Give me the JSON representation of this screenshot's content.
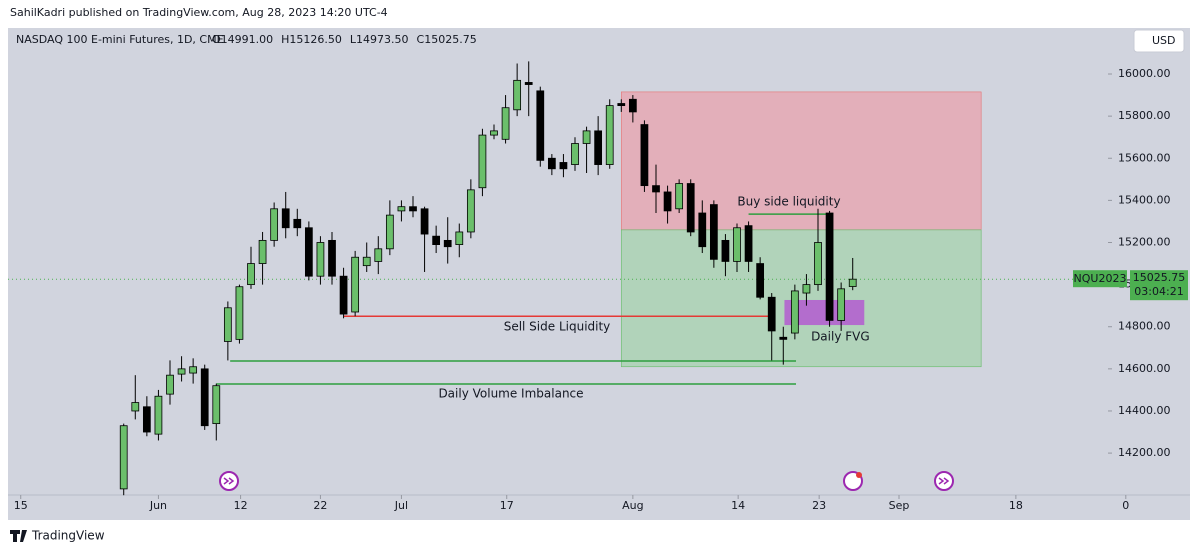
{
  "header": {
    "publisher": "SahilKadri published on TradingView.com, Aug 28, 2023 14:20 UTC-4",
    "brand": "TradingView"
  },
  "chart_data": {
    "type": "candlestick",
    "title": "NASDAQ 100 E-mini Futures, 1D, CME",
    "ohlc_legend": [
      "O14991.00",
      "H15126.50",
      "L14973.50",
      "C15025.75"
    ],
    "currency": "USD",
    "x": [
      0,
      1,
      2,
      3,
      4,
      5,
      6,
      7,
      8,
      9,
      10,
      11,
      12,
      13,
      14,
      15,
      16,
      17,
      18,
      19,
      20,
      21,
      22,
      23,
      24,
      25,
      26,
      27,
      28,
      29,
      30,
      31,
      32,
      33,
      34,
      35,
      36,
      37,
      38,
      39,
      40,
      41,
      42,
      43,
      44,
      45,
      46,
      47,
      48,
      49,
      50,
      51,
      52,
      53,
      54,
      55,
      56,
      57,
      58,
      59,
      60,
      61,
      62,
      63
    ],
    "open": [
      14030,
      14400,
      14420,
      14290,
      14480,
      14575,
      14580,
      14600,
      14340,
      14730,
      14740,
      15000,
      15100,
      15210,
      15360,
      15310,
      15270,
      15040,
      15210,
      15040,
      14870,
      15090,
      15110,
      15170,
      15350,
      15370,
      15360,
      15230,
      15210,
      15190,
      15250,
      15460,
      15710,
      15690,
      15830,
      15960,
      15920,
      15600,
      15580,
      15570,
      15670,
      15730,
      15570,
      15860,
      15880,
      15760,
      15470,
      15440,
      15360,
      15480,
      15340,
      15380,
      15210,
      15110,
      15280,
      15100,
      14940,
      14750,
      14770,
      14960,
      15000,
      15340,
      14830,
      14991
    ],
    "high": [
      14340,
      14570,
      14470,
      14500,
      14640,
      14660,
      14650,
      14620,
      14530,
      14920,
      15000,
      15180,
      15250,
      15390,
      15440,
      15360,
      15300,
      15230,
      15250,
      15080,
      15160,
      15200,
      15230,
      15400,
      15400,
      15420,
      15370,
      15280,
      15320,
      15290,
      15500,
      15740,
      15760,
      15900,
      16050,
      16060,
      15940,
      15620,
      15620,
      15700,
      15750,
      15800,
      15880,
      15880,
      15900,
      15780,
      15570,
      15470,
      15500,
      15500,
      15400,
      15400,
      15240,
      15290,
      15300,
      15130,
      14960,
      14800,
      15000,
      15050,
      15360,
      15350,
      15010,
      15126.5
    ],
    "low": [
      14000,
      14360,
      14280,
      14260,
      14430,
      14540,
      14530,
      14310,
      14260,
      14640,
      14720,
      14980,
      15000,
      15180,
      15220,
      15230,
      15020,
      15000,
      15000,
      14840,
      14850,
      15060,
      15050,
      15140,
      15300,
      15320,
      15060,
      15150,
      15100,
      15130,
      15220,
      15420,
      15690,
      15670,
      15800,
      15800,
      15560,
      15520,
      15510,
      15540,
      15530,
      15520,
      15550,
      15820,
      15770,
      15440,
      15340,
      15290,
      15340,
      15230,
      15150,
      15080,
      15040,
      15060,
      15060,
      14930,
      14640,
      14620,
      14740,
      14900,
      14970,
      14800,
      14780,
      14973.5
    ],
    "close": [
      14330,
      14440,
      14300,
      14470,
      14570,
      14600,
      14610,
      14330,
      14520,
      14890,
      14990,
      15100,
      15210,
      15360,
      15270,
      15270,
      15040,
      15200,
      15040,
      14860,
      15130,
      15130,
      15170,
      15330,
      15370,
      15350,
      15240,
      15190,
      15180,
      15250,
      15450,
      15710,
      15730,
      15840,
      15970,
      15950,
      15590,
      15550,
      15550,
      15670,
      15730,
      15570,
      15850,
      15850,
      15820,
      15470,
      15440,
      15350,
      15480,
      15250,
      15180,
      15120,
      15110,
      15270,
      15110,
      14940,
      14780,
      14740,
      14970,
      15000,
      15200,
      14830,
      14980,
      15025.75
    ],
    "up_color": "#6bbf6b",
    "down_color": "#000000",
    "xlim": [
      -10,
      88
    ],
    "xticks": [
      {
        "value": -8.9,
        "label": "15"
      },
      {
        "value": 3.0,
        "label": "Jun"
      },
      {
        "value": 10.1,
        "label": "12"
      },
      {
        "value": 17.0,
        "label": "22"
      },
      {
        "value": 24.0,
        "label": "Jul"
      },
      {
        "value": 33.1,
        "label": "17"
      },
      {
        "value": 44.0,
        "label": "Aug"
      },
      {
        "value": 53.1,
        "label": "14"
      },
      {
        "value": 60.1,
        "label": "23"
      },
      {
        "value": 67.0,
        "label": "Sep"
      },
      {
        "value": 77.1,
        "label": "18"
      },
      {
        "value": 86.6,
        "label": "0"
      }
    ],
    "ylim": [
      14001,
      16209
    ],
    "yticks": [
      {
        "value": 14200,
        "label": "14200.00"
      },
      {
        "value": 14400,
        "label": "14400.00"
      },
      {
        "value": 14600,
        "label": "14600.00"
      },
      {
        "value": 14800,
        "label": "14800.00"
      },
      {
        "value": 15000,
        "label": "15000.00"
      },
      {
        "value": 15200,
        "label": "15200.00"
      },
      {
        "value": 15400,
        "label": "15400.00"
      },
      {
        "value": 15600,
        "label": "15600.00"
      },
      {
        "value": 15800,
        "label": "15800.00"
      },
      {
        "value": 16000,
        "label": "16000.00"
      }
    ],
    "last_price": {
      "value": 15025.75,
      "symbol": "NQU2023",
      "label": "15025.75",
      "countdown": "03:04:21",
      "color": "#4caf50"
    },
    "zones": [
      {
        "x": [
          43.0,
          74.1
        ],
        "y": [
          15260,
          15915
        ],
        "color": "#e8a3ad"
      },
      {
        "x": [
          43.0,
          74.1
        ],
        "y": [
          14610,
          15260
        ],
        "color": "#a6d3ad"
      },
      {
        "x": [
          57.1,
          64.0
        ],
        "y": [
          14808,
          14927
        ],
        "color": "#b45ad0"
      }
    ],
    "levels": [
      {
        "label": "Buy side liquidity",
        "y": 15335,
        "x": [
          54.0,
          61.1
        ],
        "color": "#2e9e3e"
      },
      {
        "label": "Sell Side Liquidity",
        "y": 14850,
        "x": [
          19.0,
          55.9
        ],
        "color": "#e53935"
      },
      {
        "label": "Daily Volume Imbalance",
        "y": 14528,
        "x": [
          8.0,
          58.1
        ],
        "color": "#2e9e3e"
      },
      {
        "y": 14637,
        "x": [
          9.2,
          58.1
        ],
        "color": "#2e9e3e"
      }
    ],
    "fvg_label": "Daily FVG"
  }
}
